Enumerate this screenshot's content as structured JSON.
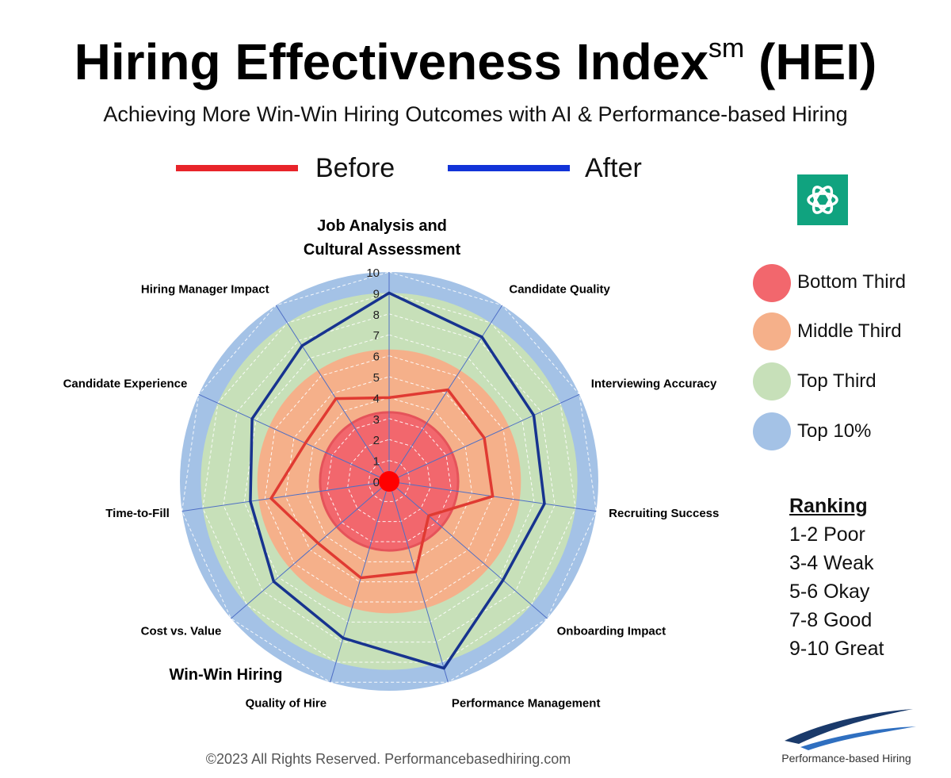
{
  "header": {
    "title_main": "Hiring Effectiveness Index",
    "title_sup": "sm",
    "title_tail": "(HEI)",
    "subtitle": "Achieving More Win-Win Hiring Outcomes with AI & Performance-based Hiring"
  },
  "legend": {
    "before_label": "Before",
    "after_label": "After",
    "before_color": "#e8242a",
    "after_color": "#1233d8"
  },
  "categories_legend": [
    {
      "label": "Bottom Third",
      "color": "#f2676d"
    },
    {
      "label": "Middle Third",
      "color": "#f5b08a"
    },
    {
      "label": "Top Third",
      "color": "#c7e0b9"
    },
    {
      "label": "Top 10%",
      "color": "#a4c2e6"
    }
  ],
  "ranking": {
    "title": "Ranking",
    "items": [
      "1-2 Poor",
      "3-4 Weak",
      "5-6 Okay",
      "7-8 Good",
      "9-10 Great"
    ]
  },
  "center_label": "Win-Win Hiring",
  "footer": "©2023 All Rights Reserved. Performancebasedhiring.com",
  "logo_text": "Performance-based Hiring",
  "ai_badge_icon": "openai-knot-icon",
  "chart_data": {
    "type": "radar",
    "axes": [
      "Job Analysis and Cultural Assessment",
      "Candidate Quality",
      "Interviewing Accuracy",
      "Recruiting Success",
      "Onboarding Impact",
      "Performance Management",
      "Quality of Hire",
      "Cost vs. Value",
      "Time-to-Fill",
      "Candidate Experience",
      "Hiring Manager Impact"
    ],
    "rlim": [
      0,
      10
    ],
    "ticks": [
      "0",
      "1",
      "2",
      "3",
      "4",
      "5",
      "6",
      "7",
      "8",
      "9",
      "10"
    ],
    "bands": [
      {
        "label": "Bottom Third",
        "from": 0,
        "to": 3.3,
        "color": "#f2676d"
      },
      {
        "label": "Middle Third",
        "from": 3.3,
        "to": 6.3,
        "color": "#f5b08a"
      },
      {
        "label": "Top Third",
        "from": 6.3,
        "to": 9,
        "color": "#c7e0b9"
      },
      {
        "label": "Top 10%",
        "from": 9,
        "to": 10,
        "color": "#a4c2e6"
      }
    ],
    "series": [
      {
        "name": "Before",
        "color": "#e8242a",
        "values": [
          4,
          5.2,
          5,
          5,
          2.5,
          4.5,
          4.8,
          4.5,
          5.7,
          4.4,
          4.7
        ]
      },
      {
        "name": "After",
        "color": "#1233d8",
        "values": [
          9,
          8.2,
          7.6,
          7.5,
          7.2,
          9.3,
          7.8,
          7.3,
          6.7,
          7.2,
          7.7
        ]
      }
    ]
  }
}
